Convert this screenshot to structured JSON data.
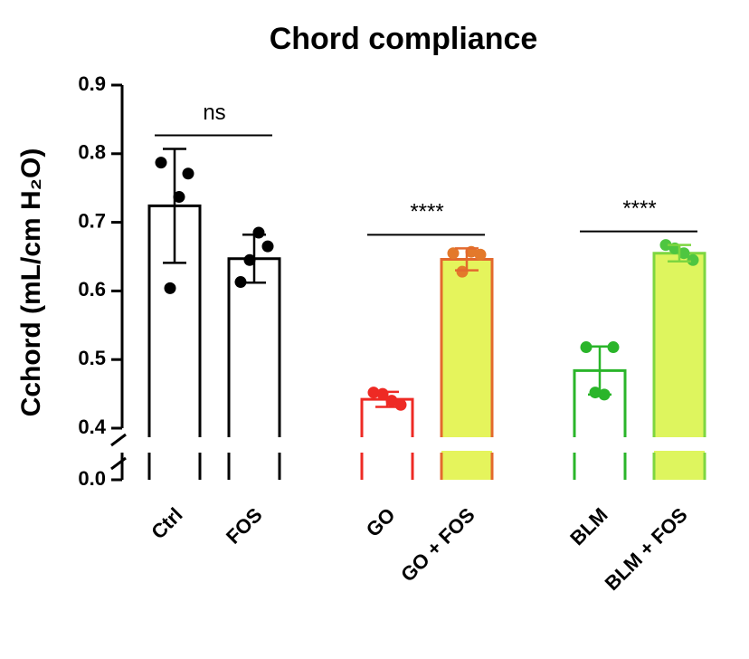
{
  "chart_data": {
    "type": "bar",
    "title": "Chord compliance",
    "y_label": "Cchord (mL/cm H₂O)",
    "categories": [
      "Ctrl",
      "FOS",
      "GO",
      "GO + FOS",
      "BLM",
      "BLM + FOS"
    ],
    "values": [
      0.724,
      0.647,
      0.442,
      0.646,
      0.484,
      0.655
    ],
    "errors": [
      0.083,
      0.035,
      0.011,
      0.016,
      0.035,
      0.012
    ],
    "points": [
      [
        0.787,
        0.604,
        0.737,
        0.771
      ],
      [
        0.613,
        0.645,
        0.685,
        0.665
      ],
      [
        0.452,
        0.45,
        0.44,
        0.434
      ],
      [
        0.655,
        0.628,
        0.657,
        0.653
      ],
      [
        0.518,
        0.452,
        0.449,
        0.518
      ],
      [
        0.667,
        0.662,
        0.655,
        0.645
      ]
    ],
    "colors": [
      "#000000",
      "#000000",
      "#ee2a24",
      "#e3692e",
      "#2ab52a",
      "#7dd640"
    ],
    "fills": [
      "#ffffff",
      "#ffffff",
      "#ffffff",
      "#e5f45c",
      "#ffffff",
      "#def55e"
    ],
    "point_colors": [
      "#000000",
      "#000000",
      "#ee2a24",
      "#e3792b",
      "#2ab52a",
      "#4ec640"
    ],
    "ylim": [
      0.4,
      0.9
    ],
    "yticks": [
      {
        "value": 0.4,
        "label": "0.4"
      },
      0.5,
      0.6,
      0.7,
      0.8,
      0.9
    ],
    "lower_yticks": [
      {
        "value": 0,
        "label": "0.0"
      }
    ],
    "axis_break": true,
    "annotations": [
      {
        "text": "ns",
        "groups": [
          "Ctrl",
          "FOS"
        ]
      },
      {
        "text": "****",
        "groups": [
          "GO",
          "GO + FOS"
        ]
      },
      {
        "text": "****",
        "groups": [
          "BLM",
          "BLM + FOS"
        ]
      }
    ]
  }
}
